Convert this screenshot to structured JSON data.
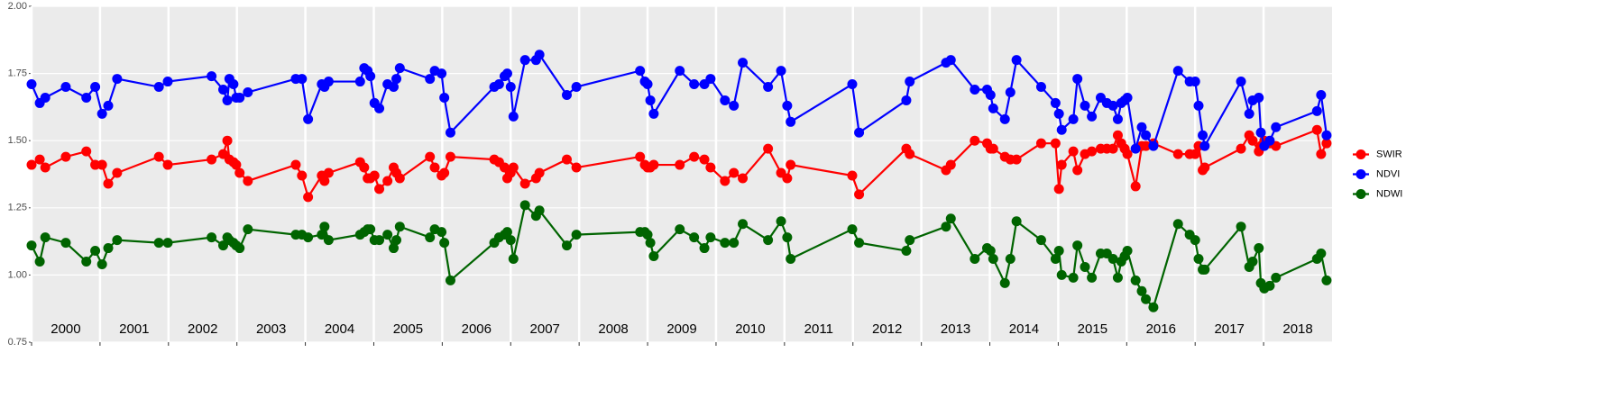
{
  "chart_data": {
    "type": "line",
    "x": [
      2000.0,
      2000.12,
      2000.2,
      2000.5,
      2000.8,
      2000.93,
      2001.03,
      2001.12,
      2001.25,
      2001.86,
      2001.99,
      2002.63,
      2002.8,
      2002.86,
      2002.89,
      2002.95,
      2002.99,
      2003.04,
      2003.16,
      2003.86,
      2003.95,
      2004.04,
      2004.24,
      2004.28,
      2004.34,
      2004.8,
      2004.86,
      2004.91,
      2004.95,
      2005.01,
      2005.08,
      2005.2,
      2005.29,
      2005.33,
      2005.38,
      2005.82,
      2005.89,
      2005.99,
      2006.03,
      2006.12,
      2006.76,
      2006.83,
      2006.91,
      2006.95,
      2007.0,
      2007.04,
      2007.21,
      2007.37,
      2007.42,
      2007.82,
      2007.96,
      2008.89,
      2008.96,
      2009.0,
      2009.04,
      2009.09,
      2009.47,
      2009.68,
      2009.83,
      2009.92,
      2010.13,
      2010.26,
      2010.39,
      2010.76,
      2010.95,
      2011.04,
      2011.09,
      2011.99,
      2012.09,
      2012.78,
      2012.83,
      2013.36,
      2013.43,
      2013.78,
      2013.96,
      2014.01,
      2014.05,
      2014.22,
      2014.3,
      2014.39,
      2014.75,
      2014.96,
      2015.01,
      2015.05,
      2015.22,
      2015.28,
      2015.39,
      2015.49,
      2015.62,
      2015.71,
      2015.8,
      2015.87,
      2015.92,
      2015.97,
      2016.01,
      2016.13,
      2016.22,
      2016.28,
      2016.39,
      2016.75,
      2016.92,
      2017.0,
      2017.05,
      2017.11,
      2017.14,
      2017.67,
      2017.79,
      2017.84,
      2017.93,
      2017.96,
      2018.01,
      2018.09,
      2018.18,
      2018.78,
      2018.84,
      2018.92
    ],
    "series": [
      {
        "name": "SWIR",
        "color": "#ff0000",
        "values": [
          1.41,
          1.43,
          1.4,
          1.44,
          1.46,
          1.41,
          1.41,
          1.34,
          1.38,
          1.44,
          1.41,
          1.43,
          1.45,
          1.5,
          1.43,
          1.42,
          1.41,
          1.38,
          1.35,
          1.41,
          1.37,
          1.29,
          1.37,
          1.35,
          1.38,
          1.42,
          1.4,
          1.36,
          1.36,
          1.37,
          1.32,
          1.35,
          1.4,
          1.38,
          1.36,
          1.44,
          1.4,
          1.37,
          1.38,
          1.44,
          1.43,
          1.42,
          1.4,
          1.36,
          1.38,
          1.4,
          1.34,
          1.36,
          1.38,
          1.43,
          1.4,
          1.44,
          1.41,
          1.4,
          1.4,
          1.41,
          1.41,
          1.44,
          1.43,
          1.4,
          1.35,
          1.38,
          1.36,
          1.47,
          1.38,
          1.36,
          1.41,
          1.37,
          1.3,
          1.47,
          1.45,
          1.39,
          1.41,
          1.5,
          1.49,
          1.47,
          1.47,
          1.44,
          1.43,
          1.43,
          1.49,
          1.49,
          1.32,
          1.41,
          1.46,
          1.39,
          1.45,
          1.46,
          1.47,
          1.47,
          1.47,
          1.52,
          1.49,
          1.47,
          1.45,
          1.33,
          1.48,
          1.48,
          1.49,
          1.45,
          1.45,
          1.45,
          1.48,
          1.39,
          1.4,
          1.47,
          1.52,
          1.5,
          1.46,
          1.48,
          1.5,
          1.49,
          1.48,
          1.54,
          1.45,
          1.49
        ]
      },
      {
        "name": "NDVI",
        "color": "#0000ff",
        "values": [
          1.71,
          1.64,
          1.66,
          1.7,
          1.66,
          1.7,
          1.6,
          1.63,
          1.73,
          1.7,
          1.72,
          1.74,
          1.69,
          1.65,
          1.73,
          1.71,
          1.66,
          1.66,
          1.68,
          1.73,
          1.73,
          1.58,
          1.71,
          1.7,
          1.72,
          1.72,
          1.77,
          1.76,
          1.74,
          1.64,
          1.62,
          1.71,
          1.7,
          1.73,
          1.77,
          1.73,
          1.76,
          1.75,
          1.66,
          1.53,
          1.7,
          1.71,
          1.74,
          1.75,
          1.7,
          1.59,
          1.8,
          1.8,
          1.82,
          1.67,
          1.7,
          1.76,
          1.72,
          1.71,
          1.65,
          1.6,
          1.76,
          1.71,
          1.71,
          1.73,
          1.65,
          1.63,
          1.79,
          1.7,
          1.76,
          1.63,
          1.57,
          1.71,
          1.53,
          1.65,
          1.72,
          1.79,
          1.8,
          1.69,
          1.69,
          1.67,
          1.62,
          1.58,
          1.68,
          1.8,
          1.7,
          1.64,
          1.6,
          1.54,
          1.58,
          1.73,
          1.63,
          1.59,
          1.66,
          1.64,
          1.63,
          1.58,
          1.64,
          1.65,
          1.66,
          1.47,
          1.55,
          1.52,
          1.48,
          1.76,
          1.72,
          1.72,
          1.63,
          1.52,
          1.48,
          1.72,
          1.6,
          1.65,
          1.66,
          1.53,
          1.48,
          1.5,
          1.55,
          1.61,
          1.67,
          1.52
        ]
      },
      {
        "name": "NDWI",
        "color": "#006400",
        "values": [
          1.11,
          1.05,
          1.14,
          1.12,
          1.05,
          1.09,
          1.04,
          1.1,
          1.13,
          1.12,
          1.12,
          1.14,
          1.11,
          1.14,
          1.13,
          1.12,
          1.11,
          1.1,
          1.17,
          1.15,
          1.15,
          1.14,
          1.15,
          1.18,
          1.13,
          1.15,
          1.16,
          1.17,
          1.17,
          1.13,
          1.13,
          1.15,
          1.1,
          1.13,
          1.18,
          1.14,
          1.17,
          1.16,
          1.12,
          0.98,
          1.12,
          1.14,
          1.15,
          1.16,
          1.13,
          1.06,
          1.26,
          1.22,
          1.24,
          1.11,
          1.15,
          1.16,
          1.16,
          1.15,
          1.12,
          1.07,
          1.17,
          1.14,
          1.1,
          1.14,
          1.12,
          1.12,
          1.19,
          1.13,
          1.2,
          1.14,
          1.06,
          1.17,
          1.12,
          1.09,
          1.13,
          1.18,
          1.21,
          1.06,
          1.1,
          1.09,
          1.06,
          0.97,
          1.06,
          1.2,
          1.13,
          1.06,
          1.09,
          1.0,
          0.99,
          1.11,
          1.03,
          0.99,
          1.08,
          1.08,
          1.06,
          0.99,
          1.05,
          1.07,
          1.09,
          0.98,
          0.94,
          0.91,
          0.88,
          1.19,
          1.15,
          1.13,
          1.06,
          1.02,
          1.02,
          1.18,
          1.03,
          1.05,
          1.1,
          0.97,
          0.95,
          0.96,
          0.99,
          1.06,
          1.08,
          0.98
        ]
      }
    ],
    "xlim": [
      2000,
      2019
    ],
    "xticks": [
      2000,
      2001,
      2002,
      2003,
      2004,
      2005,
      2006,
      2007,
      2008,
      2009,
      2010,
      2011,
      2012,
      2013,
      2014,
      2015,
      2016,
      2017,
      2018
    ],
    "ylim": [
      0.75,
      2.0
    ],
    "yticks": [
      0.75,
      {
        "value": 1,
        "label": "1.00"
      },
      1.25,
      {
        "value": 1.5,
        "label": "1.50"
      },
      1.75,
      {
        "value": 2,
        "label": "2.00"
      }
    ],
    "grid": true,
    "legend": "right"
  }
}
